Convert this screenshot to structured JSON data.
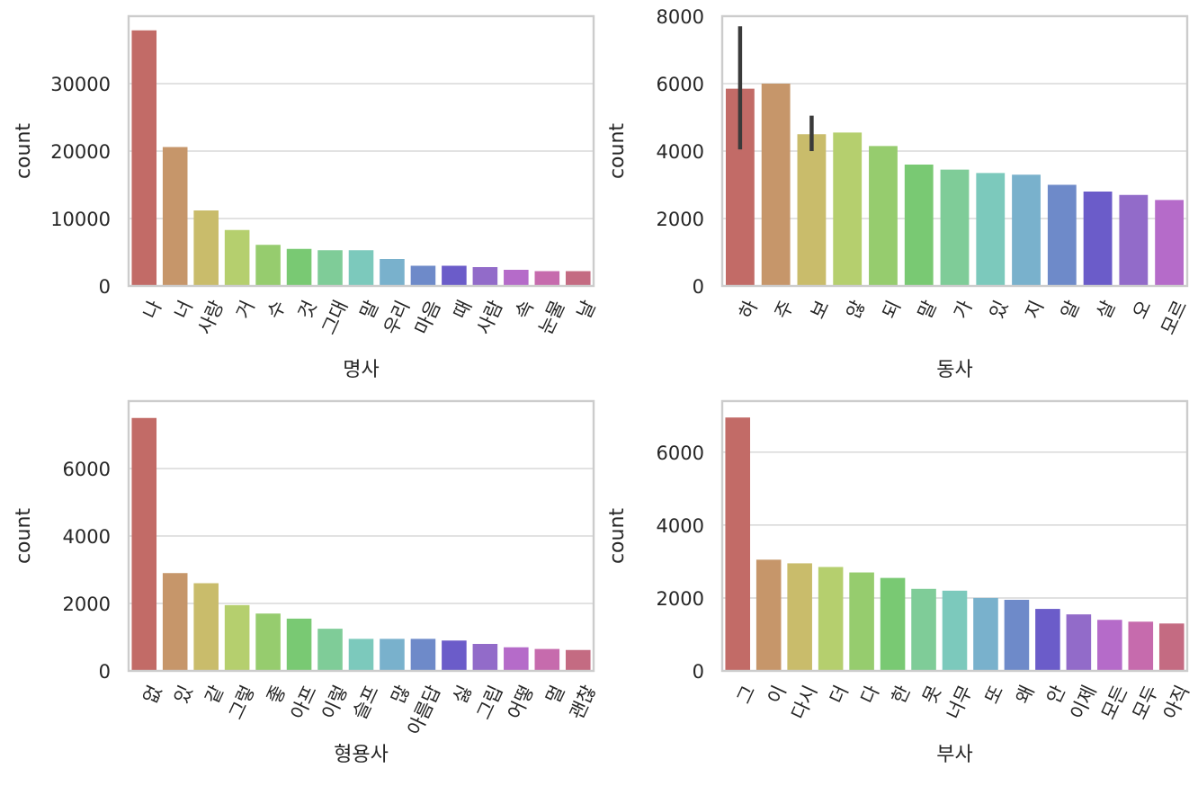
{
  "palette": [
    "#c26b67",
    "#c6966a",
    "#c9bc6b",
    "#b5cf6e",
    "#96cc6e",
    "#79c973",
    "#7fcc98",
    "#7cc9bc",
    "#79b1cc",
    "#6e8ac9",
    "#6b5cc9",
    "#926bc9",
    "#b56bc9",
    "#c66bad",
    "#c46b82"
  ],
  "gridColor": "#d9d9d9",
  "spineColor": "#cccccc",
  "chart_data": [
    {
      "type": "bar",
      "xlabel": "명사",
      "ylabel": "count",
      "ylim": [
        0,
        40000
      ],
      "yticks": [
        0,
        10000,
        20000,
        30000
      ],
      "categories": [
        "나",
        "너",
        "사랑",
        "거",
        "수",
        "것",
        "그대",
        "말",
        "우리",
        "마음",
        "때",
        "사람",
        "속",
        "눈물",
        "날"
      ],
      "values": [
        37900,
        20600,
        11200,
        8300,
        6100,
        5500,
        5300,
        5300,
        4000,
        3000,
        3000,
        2800,
        2400,
        2200,
        2200
      ],
      "error_bars": []
    },
    {
      "type": "bar",
      "xlabel": "동사",
      "ylabel": "count",
      "ylim": [
        0,
        8000
      ],
      "yticks": [
        0,
        2000,
        4000,
        6000,
        8000
      ],
      "categories": [
        "하",
        "주",
        "보",
        "않",
        "되",
        "말",
        "가",
        "있",
        "지",
        "알",
        "살",
        "오",
        "모르"
      ],
      "values": [
        5850,
        6000,
        4500,
        4550,
        4150,
        3600,
        3450,
        3350,
        3300,
        3000,
        2800,
        2700,
        2550
      ],
      "error_bars": [
        {
          "index": 0,
          "low": 4050,
          "high": 7700
        },
        {
          "index": 2,
          "low": 4000,
          "high": 5050
        }
      ]
    },
    {
      "type": "bar",
      "xlabel": "형용사",
      "ylabel": "count",
      "ylim": [
        0,
        8000
      ],
      "yticks": [
        0,
        2000,
        4000,
        6000
      ],
      "categories": [
        "없",
        "있",
        "같",
        "그렇",
        "좋",
        "아프",
        "이렇",
        "슬프",
        "많",
        "아름답",
        "싫",
        "그립",
        "어떻",
        "멀",
        "괜찮"
      ],
      "values": [
        7500,
        2900,
        2600,
        1950,
        1700,
        1550,
        1250,
        950,
        950,
        950,
        900,
        800,
        700,
        650,
        620
      ],
      "error_bars": []
    },
    {
      "type": "bar",
      "xlabel": "부사",
      "ylabel": "count",
      "ylim": [
        0,
        7400
      ],
      "yticks": [
        0,
        2000,
        4000,
        6000
      ],
      "categories": [
        "그",
        "이",
        "다시",
        "더",
        "다",
        "한",
        "못",
        "너무",
        "또",
        "왜",
        "안",
        "이제",
        "모든",
        "모두",
        "아직"
      ],
      "values": [
        6950,
        3050,
        2950,
        2850,
        2700,
        2550,
        2250,
        2200,
        2000,
        1950,
        1700,
        1550,
        1400,
        1350,
        1300
      ],
      "error_bars": []
    }
  ]
}
